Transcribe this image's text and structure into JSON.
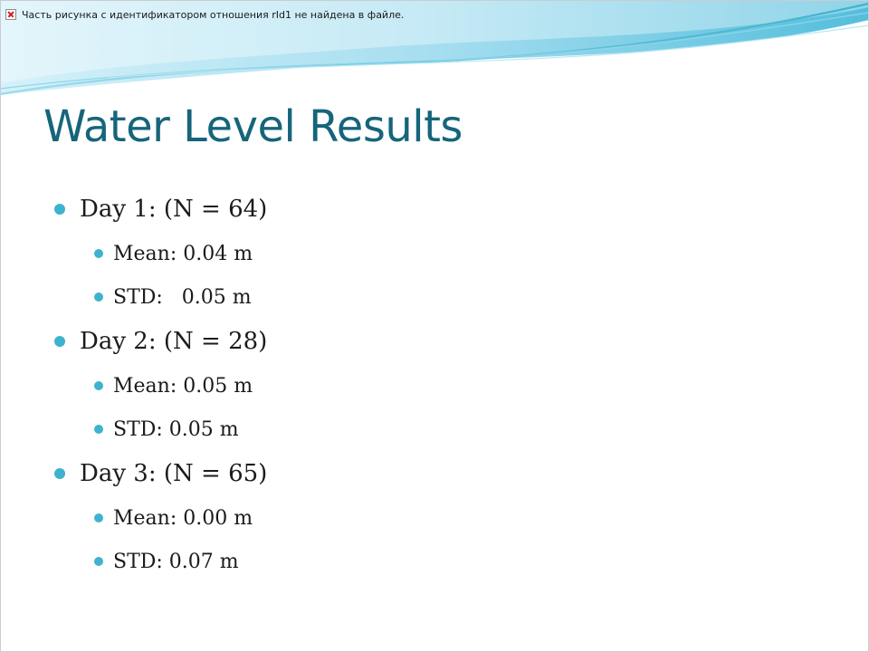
{
  "slide": {
    "missing_image_message": "Часть рисунка с идентификатором отношения rId1 не найдена в файле.",
    "title": "Water Level Results",
    "groups": [
      {
        "heading": "Day 1: (N = 64)",
        "mean": "Mean: 0.04 m",
        "std": "STD:   0.05 m"
      },
      {
        "heading": "Day 2: (N = 28)",
        "mean": "Mean: 0.05 m",
        "std": "STD: 0.05 m"
      },
      {
        "heading": "Day 3: (N = 65)",
        "mean": "Mean: 0.00 m",
        "std": "STD: 0.07 m"
      }
    ]
  },
  "colors": {
    "title": "#16657a",
    "bullet": "#3fb2cf",
    "wave_light": "#bfe8f4",
    "wave_mid": "#7fd0e6",
    "wave_dark": "#2aa3c4"
  }
}
